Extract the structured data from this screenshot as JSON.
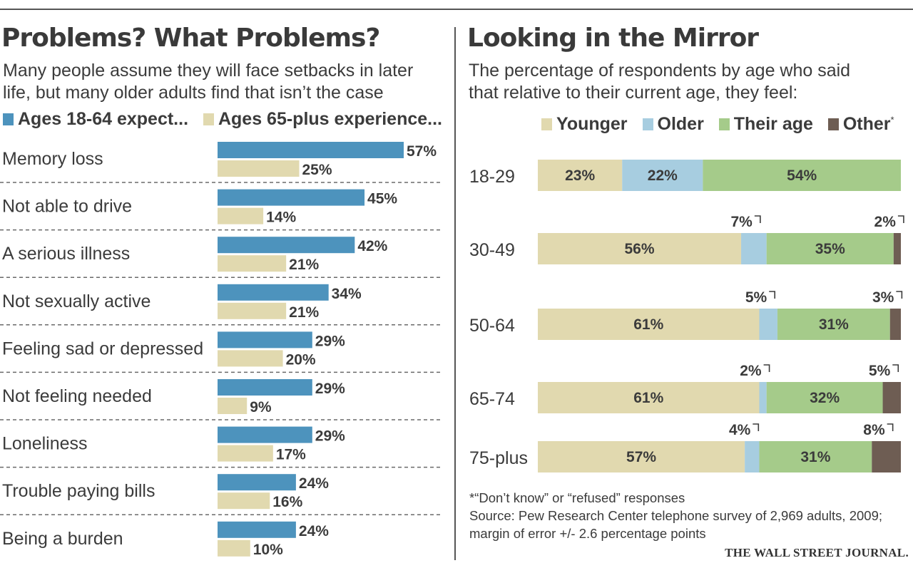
{
  "left_panel": {
    "title": "Problems? What Problems?",
    "subtitle_line1": "Many people assume they will face setbacks in later",
    "subtitle_line2": "life, but many older adults find that isn’t the  case"
  },
  "right_panel": {
    "title": "Looking in the Mirror",
    "subtitle_line1": "The percentage of respondents by age who said",
    "subtitle_line2": "that relative to their current age, they feel:"
  },
  "footnote": "*“Don’t know” or “refused” responses",
  "source_line1": "Source: Pew Research Center telephone survey of 2,969 adults, 2009;",
  "source_line2": "margin of error +/- 2.6 percentage points",
  "publisher": "THE WALL STREET JOURNAL.",
  "colors": {
    "expect": "#4d93bd",
    "experience": "#e1d9af",
    "younger": "#e1d9af",
    "older": "#a7cde0",
    "their_age": "#a5cb8a",
    "other": "#6e5d53",
    "dash": "#6a6a6a"
  },
  "chart_data": [
    {
      "type": "bar",
      "orientation": "horizontal",
      "title": "Problems? What Problems?",
      "unit": "%",
      "categories": [
        "Memory loss",
        "Not able to drive",
        "A serious illness",
        "Not sexually active",
        "Feeling sad or depressed",
        "Not feeling needed",
        "Loneliness",
        "Trouble paying bills",
        "Being a burden"
      ],
      "series": [
        {
          "name": "Ages 18-64 expect...",
          "values": [
            57,
            45,
            42,
            34,
            29,
            29,
            29,
            24,
            24
          ]
        },
        {
          "name": "Ages 65-plus experience...",
          "values": [
            25,
            14,
            21,
            21,
            20,
            9,
            17,
            16,
            10
          ]
        }
      ],
      "xlim": [
        0,
        60
      ],
      "legend": "top"
    },
    {
      "type": "bar",
      "orientation": "horizontal",
      "stacked": true,
      "title": "Looking in the Mirror",
      "unit": "%",
      "categories": [
        "18-29",
        "30-49",
        "50-64",
        "65-74",
        "75-plus"
      ],
      "series": [
        {
          "name": "Younger",
          "values": [
            23,
            56,
            61,
            61,
            57
          ]
        },
        {
          "name": "Older",
          "values": [
            22,
            7,
            5,
            2,
            4
          ]
        },
        {
          "name": "Their age",
          "values": [
            54,
            35,
            31,
            32,
            31
          ]
        },
        {
          "name": "Other",
          "values": [
            0,
            2,
            3,
            5,
            8
          ]
        }
      ],
      "legend_other_marker": "*",
      "outside_labels": [
        {
          "row": "30-49",
          "series": "Older",
          "label": "7%"
        },
        {
          "row": "30-49",
          "series": "Other",
          "label": "2%"
        },
        {
          "row": "50-64",
          "series": "Older",
          "label": "5%"
        },
        {
          "row": "50-64",
          "series": "Other",
          "label": "3%"
        },
        {
          "row": "65-74",
          "series": "Older",
          "label": "2%"
        },
        {
          "row": "65-74",
          "series": "Other",
          "label": "5%"
        },
        {
          "row": "75-plus",
          "series": "Older",
          "label": "4%"
        },
        {
          "row": "75-plus",
          "series": "Other",
          "label": "8%"
        }
      ],
      "legend": "top"
    }
  ]
}
